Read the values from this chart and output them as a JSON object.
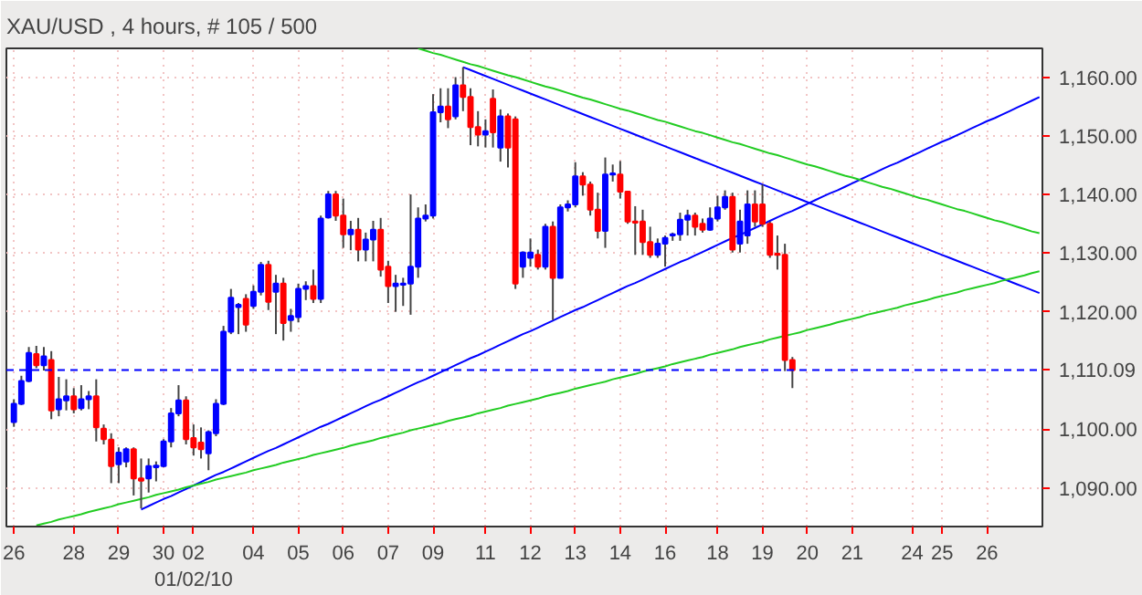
{
  "chart_data": {
    "type": "candlestick",
    "title": "XAU/USD , 4 hours, # 105 / 500",
    "categories": [
      "26",
      null,
      null,
      null,
      null,
      null,
      null,
      null,
      "28",
      null,
      null,
      null,
      null,
      null,
      "29",
      null,
      null,
      null,
      null,
      null,
      "30",
      null,
      null,
      null,
      "02\n01/02/10",
      null,
      null,
      null,
      null,
      null,
      null,
      null,
      "04",
      null,
      null,
      null,
      null,
      null,
      "05",
      null,
      null,
      null,
      null,
      null,
      "06",
      null,
      null,
      null,
      null,
      null,
      "07",
      null,
      null,
      null,
      null,
      null,
      "09",
      null,
      null,
      null,
      null,
      null,
      null,
      "11",
      null,
      null,
      null,
      null,
      null,
      "12",
      null,
      null,
      null,
      null,
      null,
      "13",
      null,
      null,
      null,
      null,
      null,
      "14",
      null,
      null,
      null,
      null,
      null,
      "16",
      null,
      null,
      null,
      null,
      null,
      null,
      "18",
      null,
      null,
      null,
      null,
      null,
      "19",
      null,
      null,
      null,
      null,
      null,
      "20",
      null,
      null,
      null,
      null,
      null,
      "21",
      null,
      null,
      null,
      null,
      null,
      null,
      null,
      "24",
      null,
      null,
      null,
      "25",
      null,
      null,
      null,
      null,
      null,
      "26",
      null,
      null,
      null,
      null,
      null,
      null,
      null
    ],
    "ohlc": [
      [
        1101.2,
        1105.1,
        1100.4,
        1104.3
      ],
      [
        1104.3,
        1109.1,
        1104.1,
        1108.2
      ],
      [
        1108.2,
        1114.0,
        1108.0,
        1113.0
      ],
      [
        1112.8,
        1114.2,
        1110.4,
        1110.9
      ],
      [
        1110.9,
        1114.0,
        1110.0,
        1112.4
      ],
      [
        1111.8,
        1113.3,
        1101.7,
        1103.2
      ],
      [
        1103.4,
        1108.9,
        1102.2,
        1105.1
      ],
      [
        1104.9,
        1108.5,
        1103.2,
        1105.6
      ],
      [
        1105.6,
        1107.0,
        1102.7,
        1103.4
      ],
      [
        1103.6,
        1107.5,
        1103.2,
        1105.1
      ],
      [
        1105.1,
        1106.5,
        1103.4,
        1105.6
      ],
      [
        1105.6,
        1108.5,
        1097.9,
        1100.3
      ],
      [
        1100.1,
        1100.8,
        1097.4,
        1098.3
      ],
      [
        1098.2,
        1099.3,
        1090.8,
        1093.7
      ],
      [
        1094.0,
        1096.9,
        1090.8,
        1096.0
      ],
      [
        1094.5,
        1096.9,
        1093.5,
        1096.6
      ],
      [
        1096.6,
        1096.9,
        1088.7,
        1091.6
      ],
      [
        1091.6,
        1095.0,
        1086.5,
        1091.2
      ],
      [
        1091.6,
        1095.0,
        1089.2,
        1093.7
      ],
      [
        1093.5,
        1094.5,
        1091.1,
        1093.8
      ],
      [
        1093.7,
        1098.3,
        1093.5,
        1097.9
      ],
      [
        1097.9,
        1103.6,
        1096.9,
        1102.7
      ],
      [
        1102.7,
        1107.5,
        1102.2,
        1104.9
      ],
      [
        1104.9,
        1105.6,
        1097.4,
        1098.3
      ],
      [
        1098.5,
        1100.8,
        1095.5,
        1096.9
      ],
      [
        1097.7,
        1100.3,
        1095.0,
        1096.6
      ],
      [
        1095.9,
        1099.8,
        1093.0,
        1099.5
      ],
      [
        1099.3,
        1105.1,
        1098.8,
        1104.3
      ],
      [
        1104.3,
        1117.6,
        1104.1,
        1116.6
      ],
      [
        1116.6,
        1123.9,
        1116.2,
        1122.4
      ],
      [
        1120.8,
        1121.5,
        1116.2,
        1121.2
      ],
      [
        1122.2,
        1123.0,
        1116.6,
        1117.8
      ],
      [
        1121.0,
        1124.5,
        1120.5,
        1123.4
      ],
      [
        1123.4,
        1128.5,
        1122.8,
        1128.0
      ],
      [
        1128.0,
        1128.7,
        1120.3,
        1121.7
      ],
      [
        1123.4,
        1126.3,
        1116.2,
        1124.8
      ],
      [
        1124.8,
        1125.8,
        1115.1,
        1118.1
      ],
      [
        1118.6,
        1120.5,
        1116.6,
        1119.3
      ],
      [
        1119.1,
        1124.8,
        1118.2,
        1123.9
      ],
      [
        1123.9,
        1125.2,
        1122.0,
        1124.4
      ],
      [
        1124.4,
        1127.2,
        1121.5,
        1122.2
      ],
      [
        1122.2,
        1136.4,
        1121.5,
        1135.9
      ],
      [
        1136.1,
        1140.6,
        1135.9,
        1140.0
      ],
      [
        1140.0,
        1140.6,
        1135.5,
        1136.4
      ],
      [
        1136.4,
        1139.3,
        1130.9,
        1133.2
      ],
      [
        1133.2,
        1135.5,
        1130.5,
        1134.0
      ],
      [
        1134.0,
        1136.0,
        1128.6,
        1130.6
      ],
      [
        1130.6,
        1133.5,
        1128.6,
        1132.3
      ],
      [
        1132.3,
        1135.5,
        1128.6,
        1134.0
      ],
      [
        1134.0,
        1136.0,
        1126.0,
        1127.2
      ],
      [
        1127.7,
        1128.7,
        1121.5,
        1124.4
      ],
      [
        1124.4,
        1126.3,
        1120.0,
        1124.8
      ],
      [
        1124.6,
        1125.8,
        1121.0,
        1124.8
      ],
      [
        1124.8,
        1140.0,
        1119.5,
        1127.7
      ],
      [
        1127.7,
        1137.8,
        1125.8,
        1135.9
      ],
      [
        1135.9,
        1138.3,
        1135.4,
        1136.4
      ],
      [
        1136.4,
        1157.1,
        1135.9,
        1154.0
      ],
      [
        1154.0,
        1158.1,
        1152.3,
        1155.0
      ],
      [
        1155.0,
        1158.1,
        1151.3,
        1152.8
      ],
      [
        1153.3,
        1160.0,
        1152.8,
        1158.6
      ],
      [
        1158.6,
        1161.7,
        1154.2,
        1156.6
      ],
      [
        1156.6,
        1158.1,
        1148.4,
        1151.5
      ],
      [
        1151.5,
        1154.2,
        1148.2,
        1150.2
      ],
      [
        1150.2,
        1152.8,
        1148.0,
        1150.8
      ],
      [
        1156.3,
        1157.9,
        1148.0,
        1150.6
      ],
      [
        1148.0,
        1154.5,
        1145.6,
        1153.3
      ],
      [
        1153.3,
        1153.8,
        1144.6,
        1148.0
      ],
      [
        1152.8,
        1153.3,
        1123.9,
        1124.8
      ],
      [
        1127.7,
        1130.3,
        1125.8,
        1130.1
      ],
      [
        1129.2,
        1132.5,
        1127.7,
        1130.1
      ],
      [
        1129.7,
        1130.6,
        1127.2,
        1127.7
      ],
      [
        1127.7,
        1135.0,
        1127.2,
        1134.5
      ],
      [
        1134.5,
        1135.4,
        1118.6,
        1125.8
      ],
      [
        1125.8,
        1138.3,
        1125.8,
        1137.8
      ],
      [
        1137.8,
        1139.0,
        1137.1,
        1138.3
      ],
      [
        1138.3,
        1145.5,
        1137.8,
        1143.1
      ],
      [
        1143.1,
        1143.8,
        1139.8,
        1141.7
      ],
      [
        1141.7,
        1142.2,
        1136.4,
        1137.4
      ],
      [
        1137.4,
        1140.3,
        1132.5,
        1133.8
      ],
      [
        1133.8,
        1146.3,
        1130.9,
        1143.4
      ],
      [
        1143.4,
        1145.1,
        1142.2,
        1143.6
      ],
      [
        1143.4,
        1145.7,
        1139.3,
        1140.5
      ],
      [
        1140.5,
        1140.5,
        1135.0,
        1135.4
      ],
      [
        1135.4,
        1138.0,
        1129.7,
        1135.2
      ],
      [
        1135.4,
        1137.4,
        1129.7,
        1131.9
      ],
      [
        1131.9,
        1134.5,
        1129.2,
        1129.7
      ],
      [
        1129.7,
        1132.5,
        1129.2,
        1131.6
      ],
      [
        1131.6,
        1133.0,
        1127.7,
        1132.6
      ],
      [
        1133.0,
        1133.5,
        1132.1,
        1133.2
      ],
      [
        1133.2,
        1136.9,
        1132.1,
        1135.7
      ],
      [
        1135.7,
        1137.4,
        1133.0,
        1136.4
      ],
      [
        1136.4,
        1136.9,
        1133.0,
        1134.5
      ],
      [
        1135.0,
        1135.9,
        1133.5,
        1134.0
      ],
      [
        1134.0,
        1137.8,
        1133.8,
        1135.9
      ],
      [
        1135.9,
        1139.8,
        1135.4,
        1137.8
      ],
      [
        1137.8,
        1140.7,
        1137.4,
        1139.6
      ],
      [
        1139.6,
        1140.3,
        1130.1,
        1130.6
      ],
      [
        1131.6,
        1137.4,
        1130.1,
        1135.4
      ],
      [
        1133.0,
        1140.7,
        1131.6,
        1138.3
      ],
      [
        1138.3,
        1140.7,
        1134.5,
        1135.4
      ],
      [
        1138.3,
        1141.7,
        1134.5,
        1135.0
      ],
      [
        1135.0,
        1135.4,
        1129.2,
        1129.7
      ],
      [
        1129.9,
        1133.0,
        1127.2,
        1129.7
      ],
      [
        1129.7,
        1131.6,
        1109.9,
        1111.8
      ],
      [
        1111.8,
        1112.3,
        1107.0,
        1110.09
      ],
      null,
      null,
      null,
      null,
      null,
      null,
      null,
      null,
      null,
      null,
      null,
      null,
      null,
      null,
      null,
      null,
      null,
      null,
      null,
      null,
      null,
      null,
      null,
      null,
      null,
      null,
      null,
      null,
      null,
      null,
      null,
      null,
      null
    ],
    "colors": [
      "#0000ff",
      "#0000ff",
      "#0000ff",
      "#ff0000",
      "#0000ff",
      "#ff0000",
      "#0000ff",
      "#0000ff",
      "#ff0000",
      "#0000ff",
      "#0000ff",
      "#ff0000",
      "#ff0000",
      "#ff0000",
      "#0000ff",
      "#0000ff",
      "#ff0000",
      "#ff0000",
      "#0000ff",
      "#0000ff",
      "#0000ff",
      "#0000ff",
      "#0000ff",
      "#ff0000",
      "#ff0000",
      "#ff0000",
      "#0000ff",
      "#0000ff",
      "#0000ff",
      "#0000ff",
      "#0000ff",
      "#ff0000",
      "#0000ff",
      "#0000ff",
      "#ff0000",
      "#0000ff",
      "#ff0000",
      "#0000ff",
      "#0000ff",
      "#0000ff",
      "#ff0000",
      "#0000ff",
      "#0000ff",
      "#ff0000",
      "#ff0000",
      "#0000ff",
      "#ff0000",
      "#0000ff",
      "#0000ff",
      "#ff0000",
      "#ff0000",
      "#0000ff",
      "#0000ff",
      "#0000ff",
      "#0000ff",
      "#0000ff",
      "#0000ff",
      "#0000ff",
      "#ff0000",
      "#0000ff",
      "#ff0000",
      "#ff0000",
      "#ff0000",
      "#0000ff",
      "#ff0000",
      "#0000ff",
      "#ff0000",
      "#ff0000",
      "#0000ff",
      "#0000ff",
      "#ff0000",
      "#0000ff",
      "#ff0000",
      "#0000ff",
      "#0000ff",
      "#0000ff",
      "#ff0000",
      "#ff0000",
      "#ff0000",
      "#0000ff",
      "#0000ff",
      "#ff0000",
      "#ff0000",
      "#ff0000",
      "#ff0000",
      "#ff0000",
      "#0000ff",
      "#0000ff",
      "#0000ff",
      "#0000ff",
      "#0000ff",
      "#ff0000",
      "#ff0000",
      "#0000ff",
      "#0000ff",
      "#0000ff",
      "#ff0000",
      "#0000ff",
      "#0000ff",
      "#ff0000",
      "#ff0000",
      "#ff0000",
      "#ff0000",
      "#ff0000",
      "#ff0000",
      null,
      null,
      null,
      null,
      null,
      null,
      null,
      null,
      null,
      null,
      null,
      null,
      null,
      null,
      null,
      null,
      null,
      null,
      null,
      null,
      null,
      null,
      null,
      null,
      null,
      null,
      null,
      null,
      null,
      null,
      null,
      null,
      null
    ],
    "series": [
      {
        "type": "line",
        "color": "#0000ff",
        "values": [
          null,
          null,
          null,
          null,
          null,
          null,
          null,
          null,
          null,
          null,
          null,
          null,
          null,
          null,
          null,
          null,
          null,
          1086.3,
          1086.9,
          1087.5,
          1088.1,
          1088.6,
          1089.2,
          1089.8,
          1090.4,
          1091.0,
          1091.6,
          1092.2,
          1092.7,
          1093.3,
          1093.9,
          1094.5,
          1095.1,
          1095.7,
          1096.3,
          1096.8,
          1097.4,
          1098.0,
          1098.6,
          1099.2,
          1099.8,
          1100.4,
          1100.9,
          1101.5,
          1102.1,
          1102.7,
          1103.3,
          1103.9,
          1104.5,
          1105.0,
          1105.6,
          1106.2,
          1106.8,
          1107.4,
          1108.0,
          1108.5,
          1109.1,
          1109.7,
          1110.3,
          1110.9,
          1111.5,
          1112.1,
          1112.6,
          1113.2,
          1113.8,
          1114.4,
          1115.0,
          1115.6,
          1116.2,
          1116.7,
          1117.3,
          1117.9,
          1118.5,
          1119.1,
          1119.7,
          1120.3,
          1120.8,
          1121.4,
          1122.0,
          1122.6,
          1123.2,
          1123.8,
          1124.4,
          1124.9,
          1125.5,
          1126.1,
          1126.7,
          1127.3,
          1127.9,
          1128.5,
          1129.0,
          1129.6,
          1130.2,
          1130.8,
          1131.4,
          1132.0,
          1132.6,
          1133.1,
          1133.7,
          1134.3,
          1134.9,
          1135.5,
          1136.1,
          1136.7,
          1137.2,
          1137.8,
          1138.4,
          1139.0,
          1139.6,
          1140.2,
          1140.7,
          1141.3,
          1141.9,
          1142.5,
          1143.1,
          1143.7,
          1144.3,
          1144.9,
          1145.4,
          1146.0,
          1146.6,
          1147.2,
          1147.8,
          1148.4,
          1149.0,
          1149.5,
          1150.1,
          1150.7,
          1151.3,
          1151.9,
          1152.5,
          1153.0,
          1153.6,
          1154.2,
          1154.8,
          1155.4,
          1156.0,
          1156.6
        ]
      },
      {
        "type": "line",
        "color": "#0000ff",
        "values": [
          null,
          null,
          null,
          null,
          null,
          null,
          null,
          null,
          null,
          null,
          null,
          null,
          null,
          null,
          null,
          null,
          null,
          null,
          null,
          null,
          null,
          null,
          null,
          null,
          null,
          null,
          null,
          null,
          null,
          null,
          null,
          null,
          null,
          null,
          null,
          null,
          null,
          null,
          null,
          null,
          null,
          null,
          null,
          null,
          null,
          null,
          null,
          null,
          null,
          null,
          null,
          null,
          null,
          null,
          null,
          null,
          null,
          null,
          null,
          null,
          1161.7,
          1161.2,
          1160.7,
          1160.2,
          1159.7,
          1159.2,
          1158.7,
          1158.2,
          1157.7,
          1157.2,
          1156.7,
          1156.2,
          1155.7,
          1155.2,
          1154.7,
          1154.2,
          1153.7,
          1153.2,
          1152.7,
          1152.2,
          1151.7,
          1151.2,
          1150.7,
          1150.2,
          1149.7,
          1149.2,
          1148.7,
          1148.2,
          1147.7,
          1147.2,
          1146.7,
          1146.2,
          1145.7,
          1145.2,
          1144.7,
          1144.2,
          1143.7,
          1143.2,
          1142.7,
          1142.2,
          1141.7,
          1141.2,
          1140.7,
          1140.2,
          1139.7,
          1139.2,
          1138.7,
          1138.2,
          1137.7,
          1137.2,
          1136.7,
          1136.2,
          1135.7,
          1135.2,
          1134.7,
          1134.2,
          1133.7,
          1133.2,
          1132.7,
          1132.2,
          1131.7,
          1131.2,
          1130.7,
          1130.2,
          1129.7,
          1129.2,
          1128.7,
          1128.2,
          1127.7,
          1127.2,
          1126.7,
          1126.2,
          1125.7,
          1125.2,
          1124.7,
          1124.2,
          1123.7,
          1123.2
        ]
      },
      {
        "type": "line",
        "color": "#22cc22",
        "values": [
          null,
          null,
          null,
          1083.6,
          1083.9,
          1084.2,
          1084.6,
          1084.9,
          1085.2,
          1085.5,
          1085.9,
          1086.2,
          1086.5,
          1086.8,
          1087.2,
          1087.5,
          1087.8,
          1088.1,
          1088.4,
          1088.8,
          1089.1,
          1089.4,
          1089.7,
          1090.1,
          1090.4,
          1090.7,
          1091.0,
          1091.4,
          1091.7,
          1092.0,
          1092.3,
          1092.6,
          1093.0,
          1093.3,
          1093.6,
          1093.9,
          1094.3,
          1094.6,
          1094.9,
          1095.2,
          1095.6,
          1095.9,
          1096.2,
          1096.5,
          1096.8,
          1097.2,
          1097.5,
          1097.8,
          1098.1,
          1098.5,
          1098.8,
          1099.1,
          1099.4,
          1099.8,
          1100.1,
          1100.4,
          1100.7,
          1101.0,
          1101.4,
          1101.7,
          1102.0,
          1102.3,
          1102.7,
          1103.0,
          1103.3,
          1103.6,
          1104.0,
          1104.3,
          1104.6,
          1104.9,
          1105.2,
          1105.6,
          1105.9,
          1106.2,
          1106.5,
          1106.9,
          1107.2,
          1107.5,
          1107.8,
          1108.1,
          1108.5,
          1108.8,
          1109.1,
          1109.4,
          1109.8,
          1110.1,
          1110.4,
          1110.7,
          1111.1,
          1111.4,
          1111.7,
          1112.0,
          1112.3,
          1112.7,
          1113.0,
          1113.3,
          1113.6,
          1114.0,
          1114.3,
          1114.6,
          1114.9,
          1115.3,
          1115.6,
          1115.9,
          1116.2,
          1116.5,
          1116.9,
          1117.2,
          1117.5,
          1117.8,
          1118.2,
          1118.5,
          1118.8,
          1119.1,
          1119.5,
          1119.8,
          1120.1,
          1120.4,
          1120.7,
          1121.1,
          1121.4,
          1121.7,
          1122.0,
          1122.4,
          1122.7,
          1123.0,
          1123.3,
          1123.7,
          1124.0,
          1124.3,
          1124.6,
          1124.9,
          1125.3,
          1125.6,
          1125.9,
          1126.2,
          1126.6,
          1126.9
        ]
      },
      {
        "type": "line",
        "color": "#22cc22",
        "values": [
          null,
          null,
          null,
          null,
          null,
          null,
          null,
          null,
          null,
          null,
          null,
          null,
          null,
          null,
          null,
          null,
          null,
          null,
          null,
          null,
          null,
          null,
          null,
          null,
          null,
          null,
          null,
          null,
          null,
          null,
          null,
          null,
          null,
          null,
          null,
          null,
          null,
          null,
          null,
          null,
          null,
          null,
          null,
          null,
          null,
          null,
          null,
          null,
          null,
          null,
          null,
          null,
          null,
          null,
          1164.9,
          1164.5,
          1164.1,
          1163.8,
          1163.4,
          1163.0,
          1162.6,
          1162.2,
          1161.9,
          1161.5,
          1161.1,
          1160.7,
          1160.3,
          1160.0,
          1159.6,
          1159.2,
          1158.8,
          1158.4,
          1158.1,
          1157.7,
          1157.3,
          1156.9,
          1156.5,
          1156.2,
          1155.8,
          1155.4,
          1155.0,
          1154.6,
          1154.3,
          1153.9,
          1153.5,
          1153.1,
          1152.7,
          1152.4,
          1152.0,
          1151.6,
          1151.2,
          1150.8,
          1150.5,
          1150.1,
          1149.7,
          1149.3,
          1148.9,
          1148.6,
          1148.2,
          1147.8,
          1147.4,
          1147.0,
          1146.7,
          1146.3,
          1145.9,
          1145.5,
          1145.1,
          1144.8,
          1144.4,
          1144.0,
          1143.6,
          1143.2,
          1142.9,
          1142.5,
          1142.1,
          1141.7,
          1141.3,
          1141.0,
          1140.6,
          1140.2,
          1139.8,
          1139.4,
          1139.1,
          1138.7,
          1138.3,
          1137.9,
          1137.5,
          1137.2,
          1136.8,
          1136.4,
          1136.0,
          1135.6,
          1135.3,
          1134.9,
          1134.5,
          1134.1,
          1133.7,
          1133.4
        ]
      }
    ],
    "ref_lines": [
      {
        "axis": "y",
        "value": 1110.09,
        "label": "1,110.09",
        "color": "#0000ff",
        "line_style": "dashed"
      }
    ],
    "ylim": [
      1083.4,
      1164.9
    ],
    "yticks": [
      {
        "value": 1090,
        "label": "1,090.00"
      },
      {
        "value": 1100,
        "label": "1,100.00"
      },
      {
        "value": 1120,
        "label": "1,120.00"
      },
      {
        "value": 1130,
        "label": "1,130.00"
      },
      {
        "value": 1140,
        "label": "1,140.00"
      },
      {
        "value": 1150,
        "label": "1,150.00"
      },
      {
        "value": 1160,
        "label": "1,160.00"
      }
    ],
    "grid": true
  }
}
